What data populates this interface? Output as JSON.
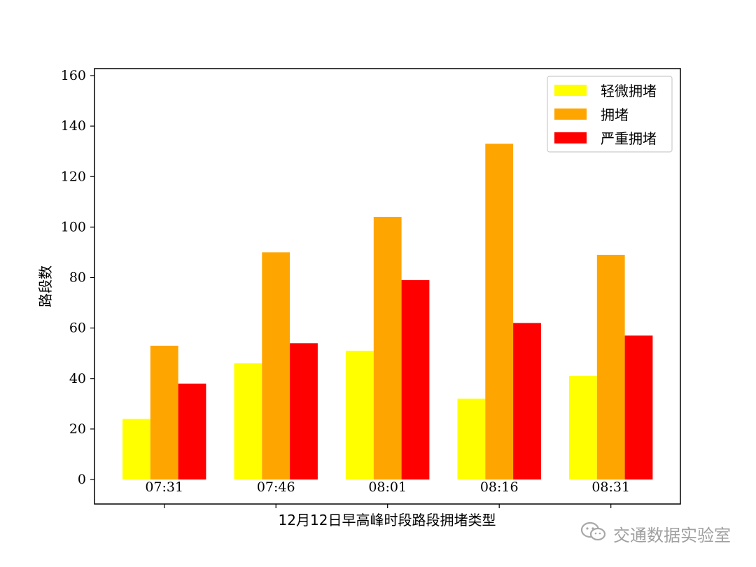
{
  "chart_data": {
    "type": "bar",
    "categories": [
      "07:31",
      "07:46",
      "08:01",
      "08:16",
      "08:31"
    ],
    "series": [
      {
        "name": "轻微拥堵",
        "color": "#ffff00",
        "values": [
          24,
          46,
          51,
          32,
          41
        ]
      },
      {
        "name": "拥堵",
        "color": "#ffa500",
        "values": [
          53,
          90,
          104,
          133,
          89
        ]
      },
      {
        "name": "严重拥堵",
        "color": "#ff0000",
        "values": [
          38,
          54,
          79,
          62,
          57
        ]
      }
    ],
    "xlabel": "12月12日早高峰时段路段拥堵类型",
    "ylabel": "路段数",
    "ylim": [
      -10,
      163
    ],
    "yticks": [
      0,
      20,
      40,
      60,
      80,
      100,
      120,
      140,
      160
    ],
    "legend": "top-right",
    "grid": false
  },
  "watermark": {
    "icon": "wechat-icon",
    "text": "交通数据实验室"
  }
}
